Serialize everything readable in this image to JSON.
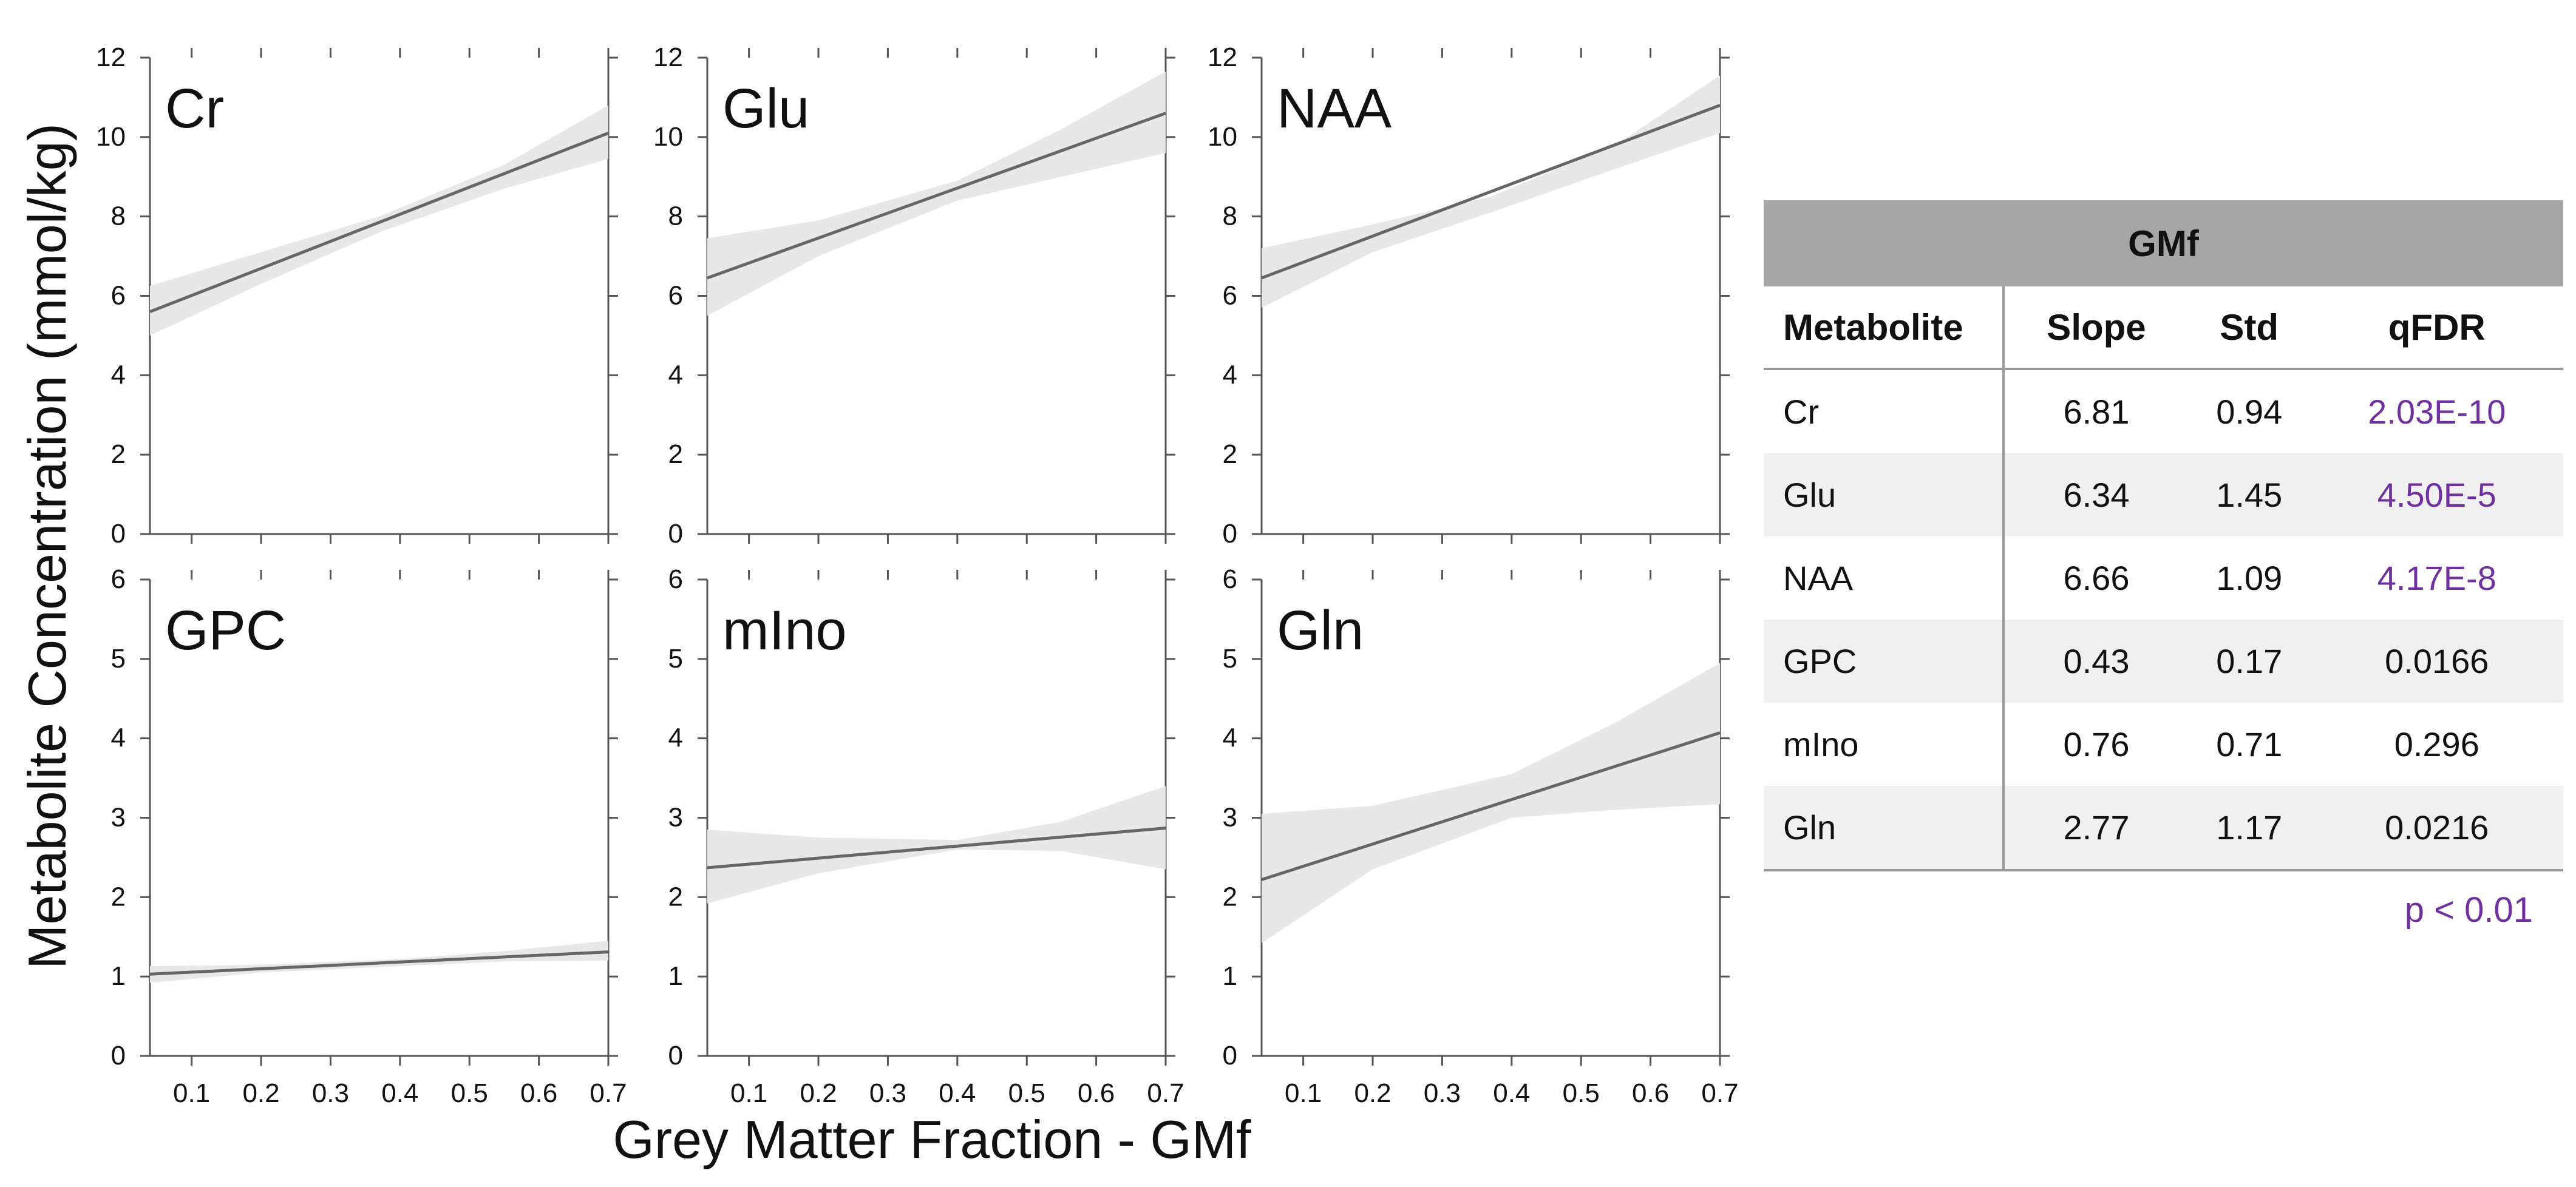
{
  "chart_data": {
    "type": "line",
    "ylabel": "Metabolite Concentration (mmol/kg)",
    "xlabel": "Grey Matter Fraction - GMf",
    "x_ticks": [
      "0.1",
      "0.2",
      "0.3",
      "0.4",
      "0.5",
      "0.6",
      "0.7"
    ],
    "xlim": [
      0.04,
      0.7
    ],
    "rows": [
      {
        "ylim": [
          0,
          12
        ],
        "y_ticks": [
          "0",
          "2",
          "4",
          "6",
          "8",
          "10",
          "12"
        ]
      },
      {
        "ylim": [
          0,
          6
        ],
        "y_ticks": [
          "0",
          "1",
          "2",
          "3",
          "4",
          "5",
          "6"
        ]
      }
    ],
    "panels": [
      {
        "name": "Cr",
        "row": 0,
        "col": 0,
        "line": [
          [
            0.04,
            5.6
          ],
          [
            0.7,
            10.1
          ]
        ],
        "band": {
          "x": [
            0.04,
            0.2,
            0.37,
            0.55,
            0.7
          ],
          "lower": [
            5.0,
            6.3,
            7.6,
            8.7,
            9.45
          ],
          "upper": [
            6.25,
            7.1,
            8.0,
            9.3,
            10.8
          ]
        }
      },
      {
        "name": "Glu",
        "row": 0,
        "col": 1,
        "line": [
          [
            0.04,
            6.45
          ],
          [
            0.7,
            10.6
          ]
        ],
        "band": {
          "x": [
            0.04,
            0.2,
            0.4,
            0.55,
            0.7
          ],
          "lower": [
            5.5,
            7.0,
            8.4,
            9.0,
            9.6
          ],
          "upper": [
            7.45,
            7.9,
            8.9,
            10.2,
            11.65
          ]
        }
      },
      {
        "name": "NAA",
        "row": 0,
        "col": 2,
        "line": [
          [
            0.04,
            6.45
          ],
          [
            0.7,
            10.8
          ]
        ],
        "band": {
          "x": [
            0.04,
            0.2,
            0.37,
            0.55,
            0.7
          ],
          "lower": [
            5.7,
            7.1,
            8.1,
            9.2,
            10.1
          ],
          "upper": [
            7.2,
            7.8,
            8.5,
            9.8,
            11.55
          ]
        }
      },
      {
        "name": "GPC",
        "row": 1,
        "col": 0,
        "line": [
          [
            0.04,
            1.03
          ],
          [
            0.7,
            1.31
          ]
        ],
        "band": {
          "x": [
            0.04,
            0.2,
            0.4,
            0.55,
            0.7
          ],
          "lower": [
            0.92,
            1.05,
            1.13,
            1.19,
            1.2
          ],
          "upper": [
            1.13,
            1.15,
            1.22,
            1.32,
            1.45
          ]
        }
      },
      {
        "name": "mIno",
        "row": 1,
        "col": 1,
        "line": [
          [
            0.04,
            2.37
          ],
          [
            0.7,
            2.87
          ]
        ],
        "band": {
          "x": [
            0.04,
            0.2,
            0.4,
            0.55,
            0.7
          ],
          "lower": [
            1.92,
            2.3,
            2.6,
            2.58,
            2.35
          ],
          "upper": [
            2.85,
            2.75,
            2.72,
            2.95,
            3.4
          ]
        }
      },
      {
        "name": "Gln",
        "row": 1,
        "col": 2,
        "line": [
          [
            0.04,
            2.22
          ],
          [
            0.7,
            4.07
          ]
        ],
        "band": {
          "x": [
            0.04,
            0.2,
            0.4,
            0.55,
            0.7
          ],
          "lower": [
            1.42,
            2.35,
            3.0,
            3.1,
            3.17
          ],
          "upper": [
            3.05,
            3.15,
            3.55,
            4.2,
            4.95
          ]
        }
      }
    ]
  },
  "table": {
    "super_header": "GMf",
    "columns": [
      "Metabolite",
      "Slope",
      "Std",
      "qFDR"
    ],
    "rows": [
      {
        "metabolite": "Cr",
        "slope": "6.81",
        "std": "0.94",
        "qfdr": "2.03E-10",
        "sig": true
      },
      {
        "metabolite": "Glu",
        "slope": "6.34",
        "std": "1.45",
        "qfdr": "4.50E-5",
        "sig": true
      },
      {
        "metabolite": "NAA",
        "slope": "6.66",
        "std": "1.09",
        "qfdr": "4.17E-8",
        "sig": true
      },
      {
        "metabolite": "GPC",
        "slope": "0.43",
        "std": "0.17",
        "qfdr": "0.0166",
        "sig": false
      },
      {
        "metabolite": "mIno",
        "slope": "0.76",
        "std": "0.71",
        "qfdr": "0.296",
        "sig": false
      },
      {
        "metabolite": "Gln",
        "slope": "2.77",
        "std": "1.17",
        "qfdr": "0.0216",
        "sig": false
      }
    ],
    "note": "p < 0.01"
  },
  "colors": {
    "line": "#666666",
    "band": "#e8e8e8",
    "axis": "#555555",
    "sig": "#7030a0",
    "header": "#a6a6a6"
  }
}
